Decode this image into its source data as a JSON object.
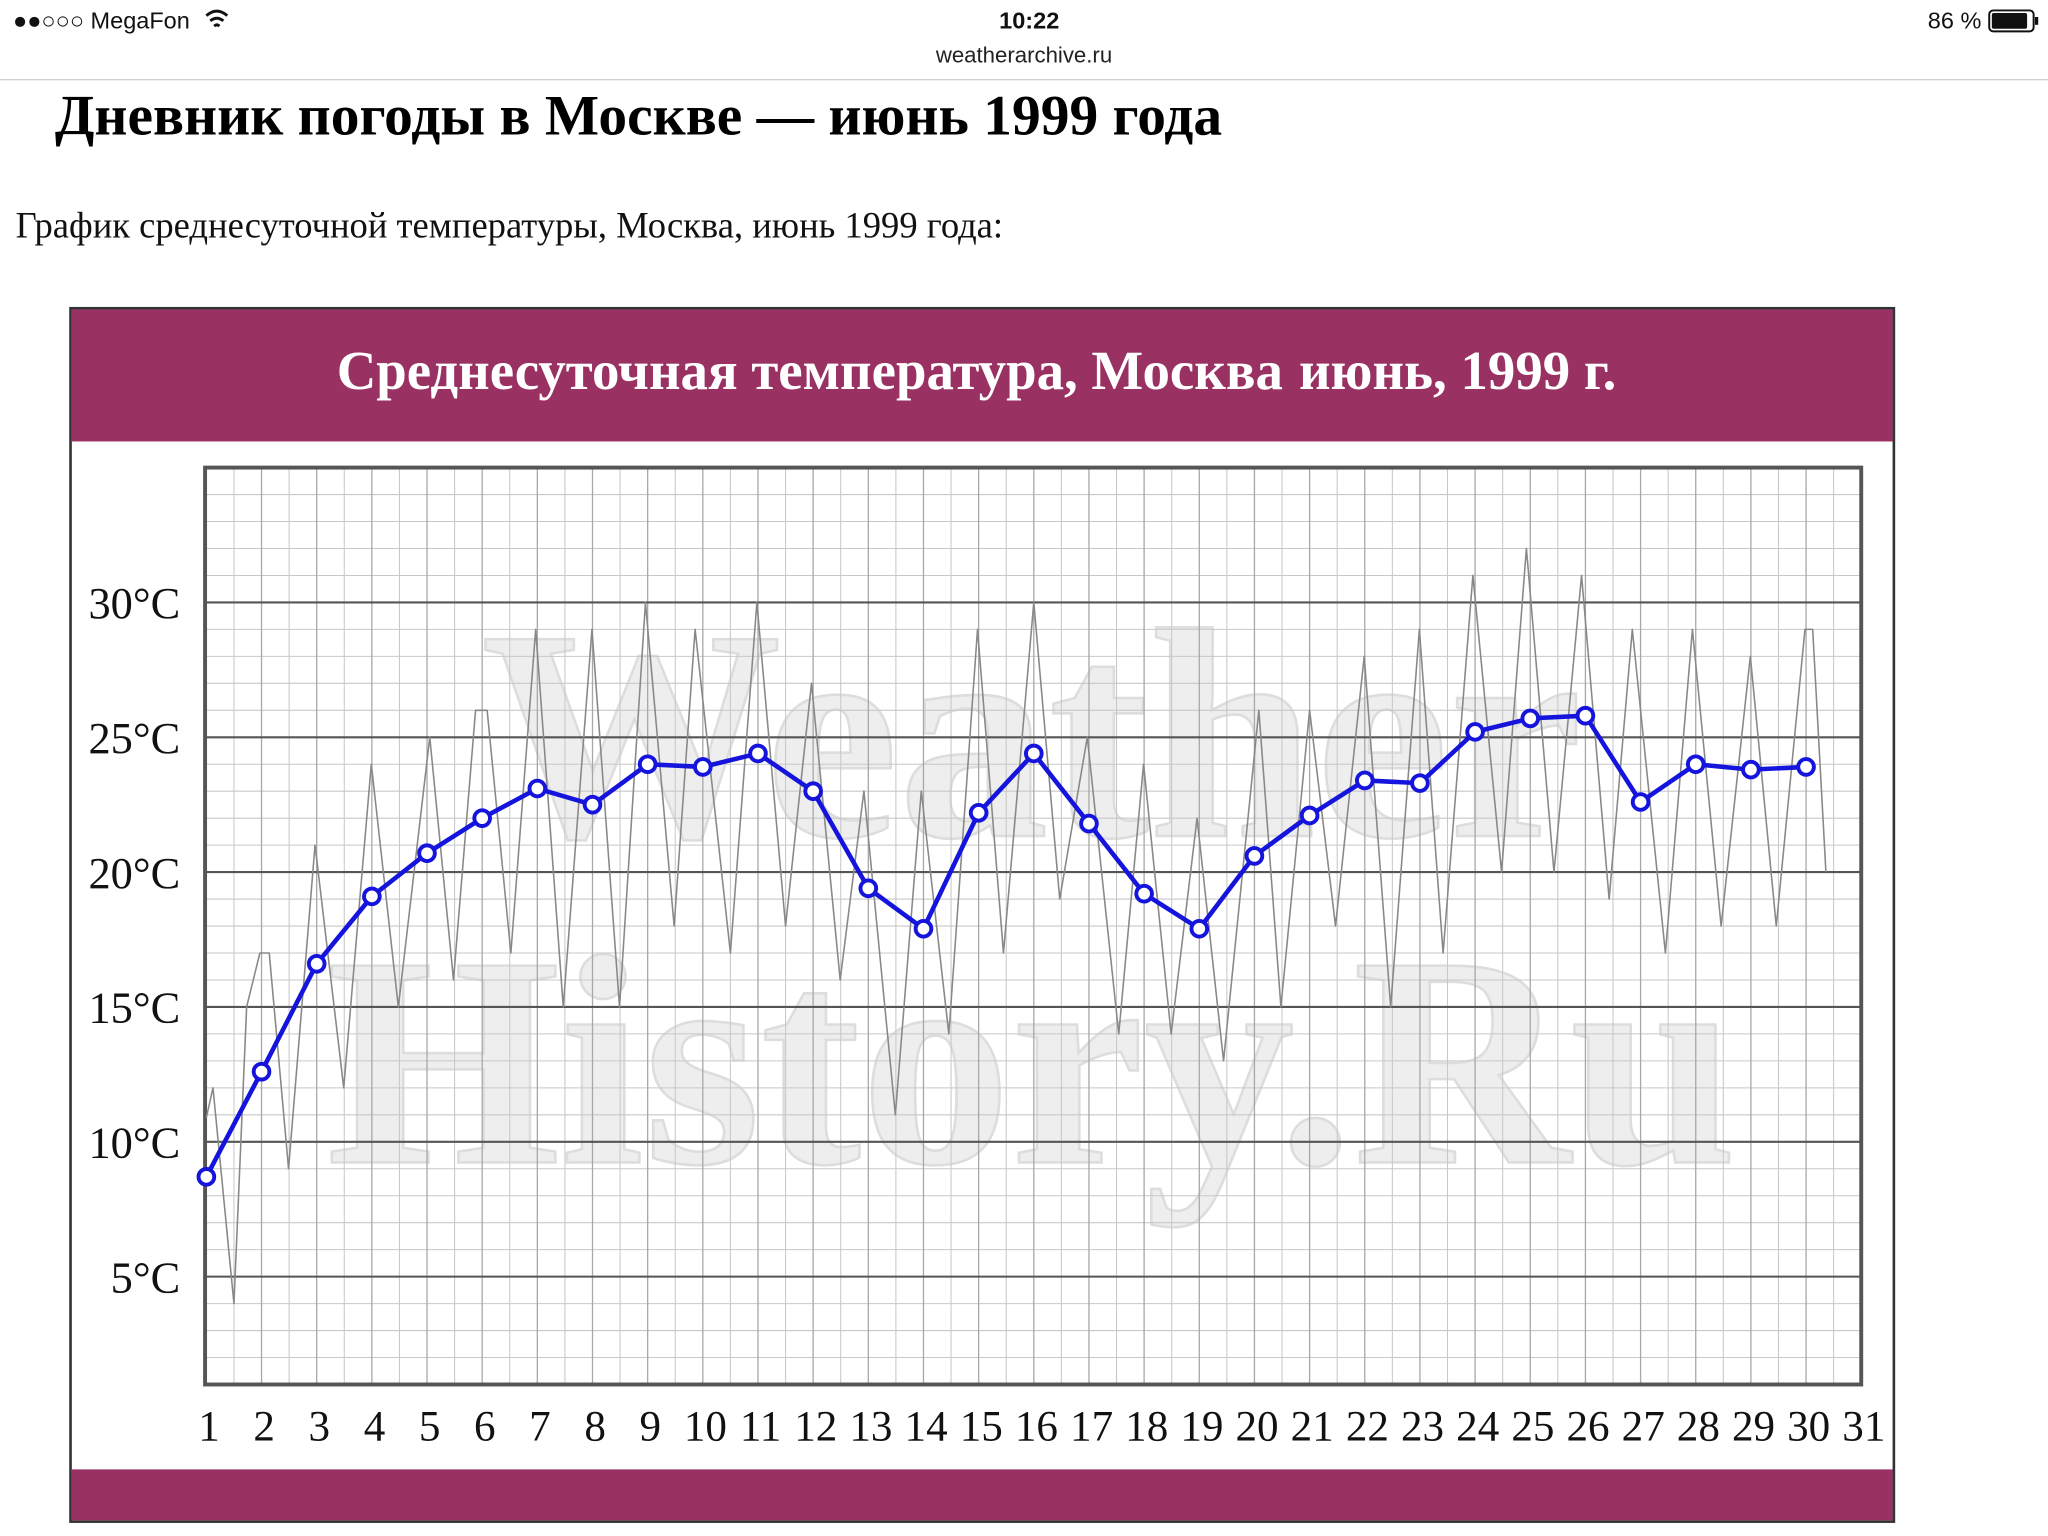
{
  "status_bar": {
    "carrier": "●●○○○ MegaFon",
    "time": "10:22",
    "url": "weatherarchive.ru",
    "battery": "86 %"
  },
  "page": {
    "heading": "Дневник погоды в Москве — июнь 1999 года",
    "intro": "График среднесуточной температуры, Москва, июнь 1999 года:"
  },
  "chart_data": {
    "type": "line",
    "title": "Среднесуточная температура, Москва",
    "subtitle": "июнь, 1999 г.",
    "watermark": [
      "Weather",
      "History.Ru"
    ],
    "grid": true,
    "xlim": [
      1,
      31
    ],
    "xticks": [
      1,
      2,
      3,
      4,
      5,
      6,
      7,
      8,
      9,
      10,
      11,
      12,
      13,
      14,
      15,
      16,
      17,
      18,
      19,
      20,
      21,
      22,
      23,
      24,
      25,
      26,
      27,
      28,
      29,
      30,
      31
    ],
    "ylim": [
      1,
      35
    ],
    "yticks": [
      {
        "value": 5,
        "label": "5°C"
      },
      {
        "value": 10,
        "label": "10°C"
      },
      {
        "value": 15,
        "label": "15°C"
      },
      {
        "value": 20,
        "label": "20°C"
      },
      {
        "value": 25,
        "label": "25°C"
      },
      {
        "value": 30,
        "label": "30°C"
      }
    ],
    "series": [
      {
        "color": "#888888",
        "markers": false,
        "x": [
          1.0,
          1.12,
          1.5,
          1.73,
          1.97,
          2.14,
          2.49,
          2.97,
          3.49,
          3.99,
          4.48,
          5.05,
          5.48,
          5.88,
          6.09,
          6.52,
          6.97,
          7.47,
          7.99,
          8.49,
          8.96,
          9.48,
          9.86,
          10.5,
          10.98,
          11.5,
          11.97,
          12.49,
          12.92,
          13.49,
          13.96,
          14.46,
          14.98,
          15.45,
          16.0,
          16.47,
          16.97,
          17.54,
          17.99,
          18.49,
          18.96,
          19.44,
          20.08,
          20.48,
          21.0,
          21.47,
          21.99,
          22.47,
          22.99,
          23.42,
          23.96,
          24.48,
          24.93,
          25.43,
          25.93,
          26.43,
          26.85,
          27.45,
          27.94,
          28.46,
          28.99,
          29.46,
          29.98,
          30.12,
          30.36
        ],
        "values": [
          10.9,
          12,
          4,
          15,
          17,
          17,
          9,
          21,
          12,
          24,
          15,
          25,
          16,
          26,
          26,
          17,
          29,
          15,
          29,
          15,
          30,
          18,
          29,
          17,
          30,
          18,
          27,
          16,
          23,
          11,
          23,
          14,
          29,
          17,
          30,
          19,
          25,
          14,
          24,
          14,
          22,
          13,
          26,
          15,
          26,
          18,
          28,
          15,
          29,
          17,
          31,
          20,
          32,
          20,
          31,
          19,
          29,
          17,
          29,
          18,
          28,
          18,
          29,
          29,
          20
        ]
      },
      {
        "color": "#1414dc",
        "markers": true,
        "x": [
          1,
          2,
          3,
          4,
          5,
          6,
          7,
          8,
          9,
          10,
          11,
          12,
          13,
          14,
          15,
          16,
          17,
          18,
          19,
          20,
          21,
          22,
          23,
          24,
          25,
          26,
          27,
          28,
          29,
          30
        ],
        "values": [
          8.7,
          12.6,
          16.6,
          19.1,
          20.7,
          22.0,
          23.1,
          22.5,
          24.0,
          23.9,
          24.4,
          23.0,
          19.4,
          17.9,
          22.2,
          24.4,
          21.8,
          19.2,
          17.9,
          20.6,
          22.1,
          23.4,
          23.3,
          25.2,
          25.7,
          25.8,
          22.6,
          24.0,
          23.8,
          23.9
        ]
      }
    ]
  }
}
